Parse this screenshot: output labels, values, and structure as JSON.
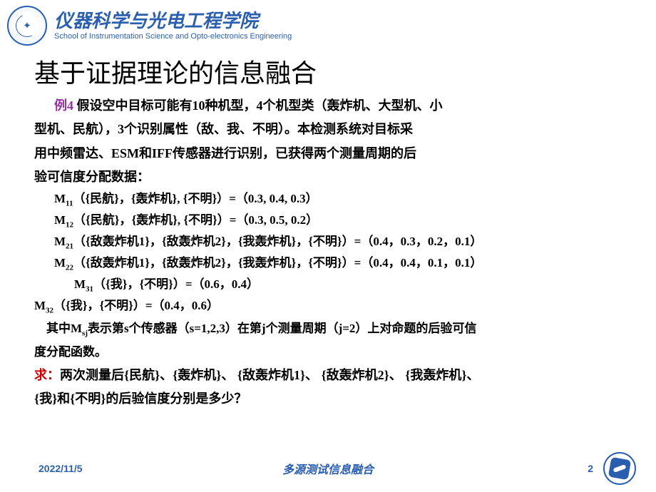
{
  "header": {
    "school_cn": "仪器科学与光电工程学院",
    "school_en": "School of Instrumentation Science and Opto-electronics Engineering"
  },
  "slide": {
    "title": "基于证据理论的信息融合",
    "example_label": "例4",
    "problem_text_1": "假设空中目标可能有10种机型，4个机型类（轰炸机、大型机、小",
    "problem_text_2": "型机、民航），3个识别属性（敌、我、不明）。本检测系统对目标采",
    "problem_text_3": "用中频雷达、ESM和IFF传感器进行识别，已获得两个测量周期的后",
    "problem_text_4": "验可信度分配数据：",
    "m11": "（{民航}，{轰炸机}, {不明}）=（0.3,  0.4,   0.3）",
    "m12": "（{民航}，{轰炸机}, {不明}）=（0.3,  0.5,  0.2）",
    "m21": "（{敌轰炸机1}，{敌轰炸机2}，{我轰炸机}，{不明}）=（0.4，0.3，0.2，0.1）",
    "m22": "（{敌轰炸机1}，{敌轰炸机2}，{我轰炸机}，{不明}）=（0.4，0.4，0.1，0.1）",
    "m31": "（{我}，{不明}）=（0.6，0.4）",
    "m32": "（{我}，{不明}）=（0.4，0.6）",
    "note_1": "其中M",
    "note_2": "表示第s个传感器（s=1,2,3）在第j个测量周期（j=2）上对命题的后验可信",
    "note_3": "度分配函数。",
    "q_label": "求：",
    "q_text_1": "两次测量后{民航}、{轰炸机}、  {敌轰炸机1}、  {敌轰炸机2}、   {我轰炸机}、",
    "q_text_2": "{我}和{不明}的后验信度分别是多少？"
  },
  "footer": {
    "date": "2022/11/5",
    "center": "多源测试信息融合",
    "page": "2"
  },
  "colors": {
    "brand": "#2a5fb0",
    "example": "#9b2fa5",
    "question": "#cc0000",
    "text": "#000000",
    "background": "#ffffff"
  }
}
